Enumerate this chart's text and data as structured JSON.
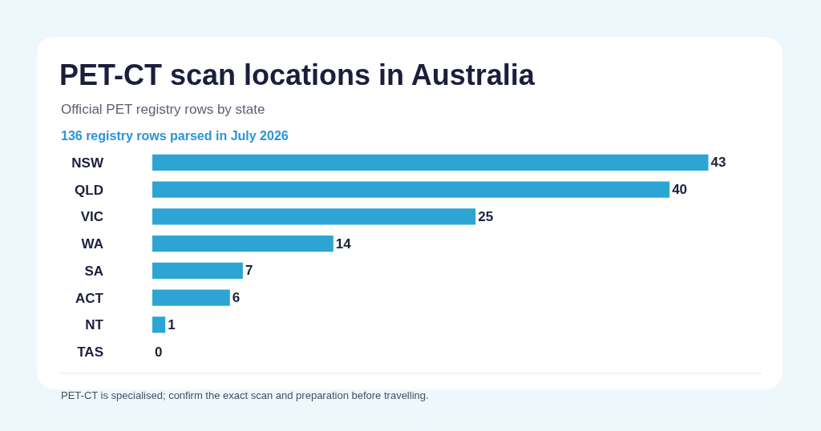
{
  "chart_data": {
    "type": "bar",
    "orientation": "horizontal",
    "title": "PET-CT scan locations in Australia",
    "subtitle": "Official PET registry rows by state",
    "annotations": [
      "136 registry rows parsed in July 2026",
      "PET-CT is specialised; confirm the exact scan and preparation before travelling."
    ],
    "categories": [
      "NSW",
      "QLD",
      "VIC",
      "WA",
      "SA",
      "ACT",
      "NT",
      "TAS"
    ],
    "values": [
      43,
      40,
      25,
      14,
      7,
      6,
      1,
      0
    ],
    "color": "#2ca5d4",
    "data_labels": true,
    "grid": false,
    "legend": false
  }
}
